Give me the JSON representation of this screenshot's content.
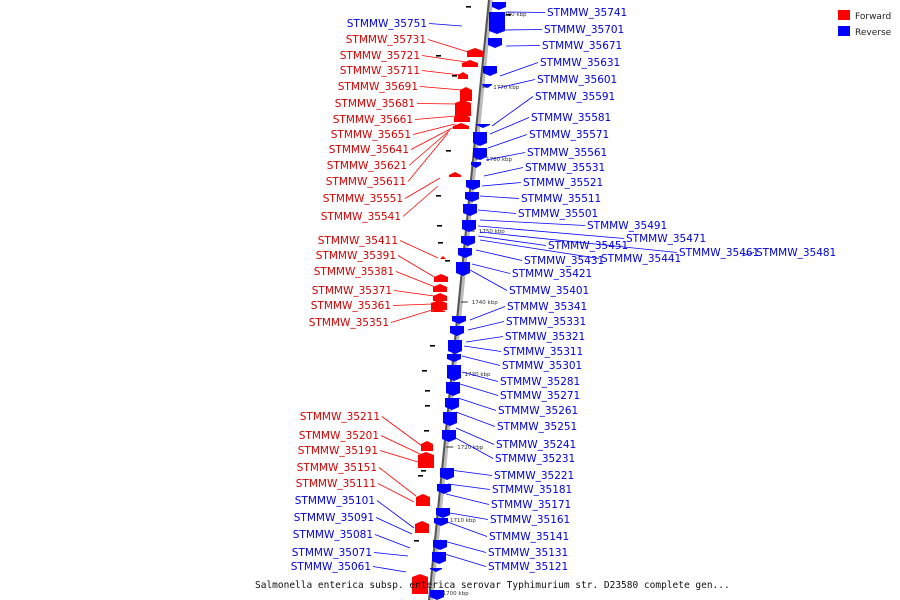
{
  "caption": "Salmonella enterica subsp. enterica serovar Typhimurium str. D23580 complete gen...",
  "legend": [
    {
      "label": "Forward",
      "color": "#ff0000"
    },
    {
      "label": "Reverse",
      "color": "#0000ff"
    }
  ],
  "colors": {
    "forward": "#ff0000",
    "reverse": "#0000ff",
    "axis": "#888888"
  },
  "kbp_ticks": [
    "1780 kbp",
    "1770 kbp",
    "1760 kbp",
    "1750 kbp",
    "1740 kbp",
    "1730 kbp",
    "1720 kbp",
    "1710 kbp",
    "1700 kbp"
  ],
  "forward_labels": [
    "STMMW_35731",
    "STMMW_35721",
    "STMMW_35711",
    "STMMW_35691",
    "STMMW_35681",
    "STMMW_35661",
    "STMMW_35651",
    "STMMW_35641",
    "STMMW_35621",
    "STMMW_35611",
    "STMMW_35551",
    "STMMW_35541",
    "STMMW_35411",
    "STMMW_35391",
    "STMMW_35381",
    "STMMW_35371",
    "STMMW_35361",
    "STMMW_35351",
    "STMMW_35211",
    "STMMW_35201",
    "STMMW_35191",
    "STMMW_35151",
    "STMMW_35111"
  ],
  "reverse_left_labels": [
    "STMMW_35751",
    "STMMW_35101",
    "STMMW_35091",
    "STMMW_35081",
    "STMMW_35071",
    "STMMW_35061"
  ],
  "reverse_right_labels": [
    "STMMW_35741",
    "STMMW_35701",
    "STMMW_35671",
    "STMMW_35631",
    "STMMW_35601",
    "STMMW_35591",
    "STMMW_35581",
    "STMMW_35571",
    "STMMW_35561",
    "STMMW_35531",
    "STMMW_35521",
    "STMMW_35511",
    "STMMW_35501",
    "STMMW_35491",
    "STMMW_35471",
    "STMMW_35451",
    "STMMW_35461",
    "STMMW_35481",
    "STMMW_35431",
    "STMMW_35441",
    "STMMW_35421",
    "STMMW_35401",
    "STMMW_35341",
    "STMMW_35331",
    "STMMW_35321",
    "STMMW_35311",
    "STMMW_35301",
    "STMMW_35281",
    "STMMW_35271",
    "STMMW_35261",
    "STMMW_35251",
    "STMMW_35241",
    "STMMW_35231",
    "STMMW_35221",
    "STMMW_35181",
    "STMMW_35171",
    "STMMW_35161",
    "STMMW_35141",
    "STMMW_35131",
    "STMMW_35121"
  ]
}
